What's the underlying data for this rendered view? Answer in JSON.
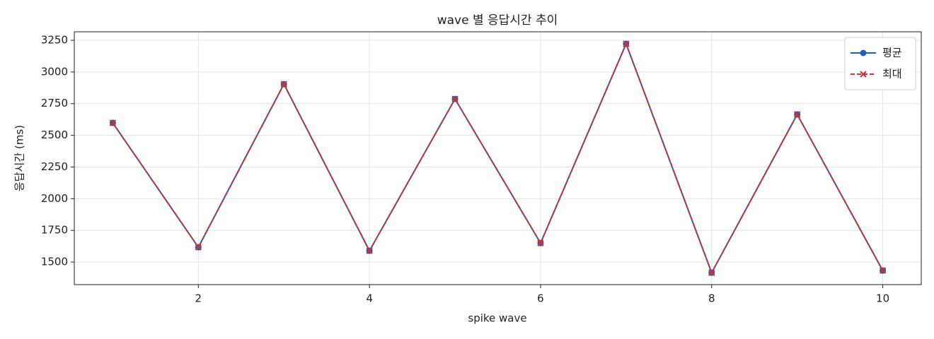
{
  "chart_data": {
    "type": "line",
    "title": "wave 별 응답시간 추이",
    "x_label": "spike wave",
    "y_label": "응답시간 (ms)",
    "x": [
      1,
      2,
      3,
      4,
      5,
      6,
      7,
      8,
      9,
      10
    ],
    "series": [
      {
        "name": "평균",
        "color": "#1f5fbf",
        "marker": "o",
        "linestyle": "solid",
        "values": [
          2598,
          1617,
          2904,
          1589,
          2787,
          1650,
          3222,
          1416,
          2665,
          1433
        ]
      },
      {
        "name": "최대",
        "color": "#d03030",
        "marker": "x",
        "linestyle": "dashed",
        "values": [
          2598,
          1617,
          2904,
          1589,
          2787,
          1650,
          3222,
          1416,
          2665,
          1433
        ]
      }
    ],
    "xlim": [
      0.55,
      10.45
    ],
    "ylim": [
      1322,
      3317
    ],
    "xticks": [
      2,
      4,
      6,
      8,
      10
    ],
    "yticks": [
      1500,
      1750,
      2000,
      2250,
      2500,
      2750,
      3000,
      3250
    ],
    "grid": true,
    "legend_position": "upper right"
  }
}
